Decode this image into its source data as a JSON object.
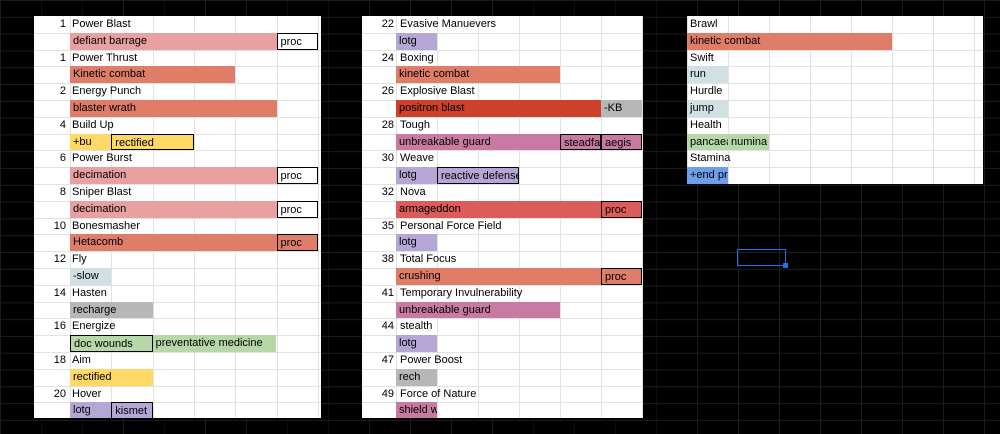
{
  "colors": {
    "pink": "#e8a0a0",
    "salmon": "#df7d69",
    "red": "#cc4128",
    "brightred": "#dc5b5b",
    "mauve": "#c97aa3",
    "lavender": "#b4a7d6",
    "yellow": "#ffd966",
    "lightblue": "#d0e0e3",
    "gray": "#b7b7b7",
    "green": "#b6d7a8",
    "blue": "#6d9eeb"
  },
  "col1": [
    {
      "lvl": "1",
      "power": "Power Blast",
      "slots": [
        {
          "t": "defiant barrage",
          "c": "pink",
          "w": 5
        },
        {
          "t": "proc",
          "c": "white",
          "w": 1,
          "b": true
        }
      ]
    },
    {
      "lvl": "1",
      "power": "Power Thrust",
      "slots": [
        {
          "t": "Kinetic combat",
          "c": "salmon",
          "w": 4
        }
      ]
    },
    {
      "lvl": "2",
      "power": "Energy Punch",
      "slots": [
        {
          "t": "blaster wrath",
          "c": "salmon",
          "w": 5
        }
      ]
    },
    {
      "lvl": "4",
      "power": "Build Up",
      "slots": [
        {
          "t": "+bu",
          "c": "yellow",
          "w": 1
        },
        {
          "t": "rectified",
          "c": "yellow",
          "w": 2,
          "b": true
        }
      ]
    },
    {
      "lvl": "6",
      "power": "Power Burst",
      "slots": [
        {
          "t": "decimation",
          "c": "pink",
          "w": 5
        },
        {
          "t": "proc",
          "c": "white",
          "w": 1,
          "b": true
        }
      ]
    },
    {
      "lvl": "8",
      "power": "Sniper Blast",
      "slots": [
        {
          "t": "decimation",
          "c": "pink",
          "w": 5
        },
        {
          "t": "proc",
          "c": "white",
          "w": 1,
          "b": true
        }
      ]
    },
    {
      "lvl": "10",
      "power": "Bonesmasher",
      "slots": [
        {
          "t": "Hetacomb",
          "c": "salmon",
          "w": 5
        },
        {
          "t": "proc",
          "c": "salmon",
          "w": 1,
          "b": true
        }
      ]
    },
    {
      "lvl": "12",
      "power": "Fly",
      "slots": [
        {
          "t": "-slow",
          "c": "lightblue",
          "w": 1
        }
      ]
    },
    {
      "lvl": "14",
      "power": "Hasten",
      "slots": [
        {
          "t": "recharge",
          "c": "gray",
          "w": 2
        }
      ]
    },
    {
      "lvl": "16",
      "power": "Energize",
      "slots": [
        {
          "t": "doc wounds",
          "c": "green",
          "w": 2,
          "b": true
        },
        {
          "t": "preventative medicine",
          "c": "green",
          "w": 3
        }
      ]
    },
    {
      "lvl": "18",
      "power": "Aim",
      "slots": [
        {
          "t": "rectified",
          "c": "yellow",
          "w": 2
        }
      ]
    },
    {
      "lvl": "20",
      "power": "Hover",
      "slots": [
        {
          "t": "lotg",
          "c": "lavender",
          "w": 1
        },
        {
          "t": "kismet",
          "c": "lavender",
          "w": 1,
          "b": true
        }
      ]
    }
  ],
  "col2": [
    {
      "lvl": "22",
      "power": "Evasive Manuevers",
      "slots": [
        {
          "t": "lotg",
          "c": "lavender",
          "w": 1
        }
      ]
    },
    {
      "lvl": "24",
      "power": "Boxing",
      "slots": [
        {
          "t": "kinetic combat",
          "c": "salmon",
          "w": 4
        }
      ]
    },
    {
      "lvl": "26",
      "power": "Explosive Blast",
      "slots": [
        {
          "t": "positron blast",
          "c": "red",
          "w": 5
        },
        {
          "t": "-KB",
          "c": "gray",
          "w": 1
        }
      ]
    },
    {
      "lvl": "28",
      "power": "Tough",
      "slots": [
        {
          "t": "unbreakable guard",
          "c": "mauve",
          "w": 4
        },
        {
          "t": "steadfast",
          "c": "mauve",
          "w": 1,
          "b": true
        },
        {
          "t": "aegis",
          "c": "mauve",
          "w": 1,
          "b": true
        }
      ]
    },
    {
      "lvl": "30",
      "power": "Weave",
      "slots": [
        {
          "t": "lotg",
          "c": "lavender",
          "w": 1
        },
        {
          "t": "reactive defense",
          "c": "lavender",
          "w": 2,
          "b": true
        }
      ]
    },
    {
      "lvl": "32",
      "power": "Nova",
      "slots": [
        {
          "t": "armageddon",
          "c": "brightred",
          "w": 5
        },
        {
          "t": "proc",
          "c": "brightred",
          "w": 1,
          "b": true
        }
      ]
    },
    {
      "lvl": "35",
      "power": "Personal Force Field",
      "slots": [
        {
          "t": "lotg",
          "c": "lavender",
          "w": 1
        }
      ]
    },
    {
      "lvl": "38",
      "power": "Total Focus",
      "slots": [
        {
          "t": "crushing",
          "c": "salmon",
          "w": 5
        },
        {
          "t": "proc",
          "c": "salmon",
          "w": 1,
          "b": true
        }
      ]
    },
    {
      "lvl": "41",
      "power": "Temporary Invulnerability",
      "slots": [
        {
          "t": "unbreakable guard",
          "c": "mauve",
          "w": 4
        }
      ]
    },
    {
      "lvl": "44",
      "power": "stealth",
      "slots": [
        {
          "t": "lotg",
          "c": "lavender",
          "w": 1
        }
      ]
    },
    {
      "lvl": "47",
      "power": "Power Boost",
      "slots": [
        {
          "t": "rech",
          "c": "gray",
          "w": 1
        }
      ]
    },
    {
      "lvl": "49",
      "power": "Force of Nature",
      "slots": [
        {
          "t": "shield wall",
          "c": "mauve",
          "w": 1
        }
      ]
    }
  ],
  "col3": [
    {
      "power": "Brawl",
      "slots": [
        {
          "t": "kinetic combat",
          "c": "salmon",
          "w": 5
        }
      ]
    },
    {
      "power": "Swift",
      "slots": [
        {
          "t": "run",
          "c": "lightblue",
          "w": 1
        }
      ]
    },
    {
      "power": "Hurdle",
      "slots": [
        {
          "t": "jump",
          "c": "lightblue",
          "w": 1
        }
      ]
    },
    {
      "power": "Health",
      "slots": [
        {
          "t": "pancaea",
          "c": "green",
          "w": 1
        },
        {
          "t": "numina",
          "c": "green",
          "w": 1
        }
      ]
    },
    {
      "power": "Stamina",
      "slots": [
        {
          "t": "+end proc",
          "c": "blue",
          "w": 1
        }
      ]
    }
  ]
}
